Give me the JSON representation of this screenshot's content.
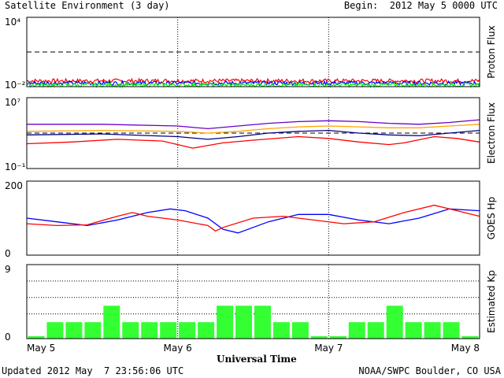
{
  "header": {
    "title": "Satellite Environment (3 day)",
    "begin": "Begin:  2012 May 5 0000 UTC"
  },
  "footer": {
    "updated": "Updated 2012 May  7 23:56:06 UTC",
    "credit": "NOAA/SWPC Boulder, CO USA"
  },
  "colors": {
    "red": "#ff0000",
    "blue": "#0000ff",
    "green": "#00ff00",
    "purple": "#6a00c8",
    "orange": "#ffa500",
    "navy": "#000080",
    "kp_bar": "#33ff33"
  },
  "chart_data": [
    {
      "type": "line",
      "ylabel": "Proton Flux",
      "yscale": "log",
      "ylim_exp": [
        -2,
        4
      ],
      "tick_labels": [
        "10⁴",
        "10⁻²"
      ],
      "threshold_exp": 1,
      "series": [
        {
          "color": "red",
          "level_exp": -1.5
        },
        {
          "color": "blue",
          "level_exp": -1.7
        },
        {
          "color": "green",
          "level_exp": -1.85
        }
      ],
      "xlabel": "Universal Time",
      "x_ticks": [
        "May 5",
        "May 6",
        "May 7",
        "May 8"
      ]
    },
    {
      "type": "line",
      "ylabel": "Electron Flux",
      "yscale": "log",
      "ylim_exp": [
        -1,
        7
      ],
      "tick_labels": [
        "10⁷",
        "10⁻¹"
      ],
      "threshold_exp": 3,
      "series": [
        {
          "color": "purple",
          "x": [
            0,
            0.5,
            1,
            1.2,
            1.4,
            1.6,
            1.8,
            2,
            2.2,
            2.4,
            2.6,
            2.8,
            3
          ],
          "y": [
            4.0,
            4.0,
            3.8,
            3.5,
            3.8,
            4.1,
            4.3,
            4.4,
            4.3,
            4.1,
            4.0,
            4.2,
            4.5
          ]
        },
        {
          "color": "orange",
          "x": [
            0,
            0.5,
            1,
            1.2,
            1.4,
            1.6,
            1.8,
            2,
            2.2,
            2.4,
            2.6,
            2.8,
            3
          ],
          "y": [
            3.2,
            3.3,
            3.2,
            3.0,
            3.2,
            3.5,
            3.7,
            3.8,
            3.7,
            3.6,
            3.6,
            3.8,
            4.0
          ]
        },
        {
          "color": "navy",
          "x": [
            0,
            0.5,
            1,
            1.2,
            1.4,
            1.6,
            1.8,
            2,
            2.2,
            2.4,
            2.6,
            2.8,
            3
          ],
          "y": [
            2.8,
            2.9,
            2.6,
            2.3,
            2.6,
            3.0,
            3.2,
            3.3,
            3.0,
            2.8,
            2.7,
            3.0,
            3.3
          ]
        },
        {
          "color": "red",
          "x": [
            0,
            0.3,
            0.6,
            0.9,
            1.0,
            1.1,
            1.3,
            1.5,
            1.8,
            2.0,
            2.2,
            2.4,
            2.5,
            2.7,
            2.85,
            3
          ],
          "y": [
            1.8,
            2.0,
            2.3,
            2.1,
            1.7,
            1.3,
            1.9,
            2.2,
            2.6,
            2.4,
            2.0,
            1.7,
            1.9,
            2.6,
            2.4,
            2.0
          ]
        }
      ],
      "xlabel": "Universal Time",
      "x_ticks": [
        "May 5",
        "May 6",
        "May 7",
        "May 8"
      ]
    },
    {
      "type": "line",
      "ylabel": "GOES Hp",
      "ylim": [
        0,
        200
      ],
      "tick_labels": [
        "200",
        "0"
      ],
      "series": [
        {
          "color": "blue",
          "x": [
            0,
            0.2,
            0.4,
            0.6,
            0.8,
            0.95,
            1.05,
            1.2,
            1.3,
            1.4,
            1.6,
            1.8,
            2.0,
            2.2,
            2.4,
            2.6,
            2.8,
            3
          ],
          "y": [
            100,
            90,
            80,
            95,
            115,
            125,
            120,
            100,
            70,
            60,
            90,
            110,
            110,
            95,
            85,
            100,
            125,
            120
          ]
        },
        {
          "color": "red",
          "x": [
            0,
            0.2,
            0.4,
            0.6,
            0.7,
            0.8,
            1.0,
            1.2,
            1.25,
            1.3,
            1.5,
            1.7,
            1.9,
            2.1,
            2.3,
            2.5,
            2.7,
            2.8,
            3
          ],
          "y": [
            85,
            80,
            82,
            105,
            115,
            105,
            95,
            80,
            65,
            75,
            100,
            105,
            95,
            85,
            90,
            115,
            135,
            125,
            105
          ]
        }
      ],
      "xlabel": "Universal Time",
      "x_ticks": [
        "May 5",
        "May 6",
        "May 7",
        "May 8"
      ]
    },
    {
      "type": "bar",
      "ylabel": "Estimated Kp",
      "ylim": [
        0,
        9
      ],
      "tick_labels": [
        "9",
        "0"
      ],
      "values": [
        0.3,
        2,
        2,
        2,
        4,
        2,
        2,
        2,
        2,
        2,
        4,
        4,
        4,
        2,
        2,
        0.3,
        0.3,
        2,
        2,
        4,
        2,
        2,
        2,
        0.3
      ],
      "xlabel": "Universal Time",
      "x_ticks": [
        "May 5",
        "May 6",
        "May 7",
        "May 8"
      ]
    }
  ]
}
